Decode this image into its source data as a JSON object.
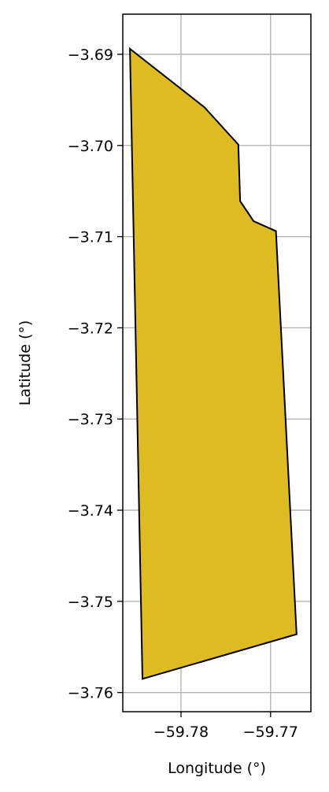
{
  "chart_data": {
    "type": "area",
    "title": "",
    "xlabel": "Longitude (°)",
    "ylabel": "Latitude (°)",
    "xlim": [
      -59.7865,
      -59.7655
    ],
    "ylim": [
      -3.7621,
      -3.6856
    ],
    "grid": true,
    "x_ticks": [
      -59.78,
      -59.77
    ],
    "x_tick_labels": [
      "−59.78",
      "−59.77"
    ],
    "y_ticks": [
      -3.69,
      -3.7,
      -3.71,
      -3.72,
      -3.73,
      -3.74,
      -3.75,
      -3.76
    ],
    "y_tick_labels": [
      "−3.69",
      "−3.70",
      "−3.71",
      "−3.72",
      "−3.73",
      "−3.74",
      "−3.75",
      "−3.76"
    ],
    "polygon": {
      "fill_color": "#DEBB20",
      "edge_color": "#000000",
      "lon": [
        -59.7857,
        -59.7774,
        -59.7736,
        -59.7734,
        -59.7719,
        -59.7694,
        -59.7671,
        -59.7843,
        -59.7857
      ],
      "lat": [
        -3.6894,
        -3.6958,
        -3.6999,
        -3.7061,
        -3.7083,
        -3.7094,
        -3.7536,
        -3.7585,
        -3.6894
      ]
    }
  }
}
